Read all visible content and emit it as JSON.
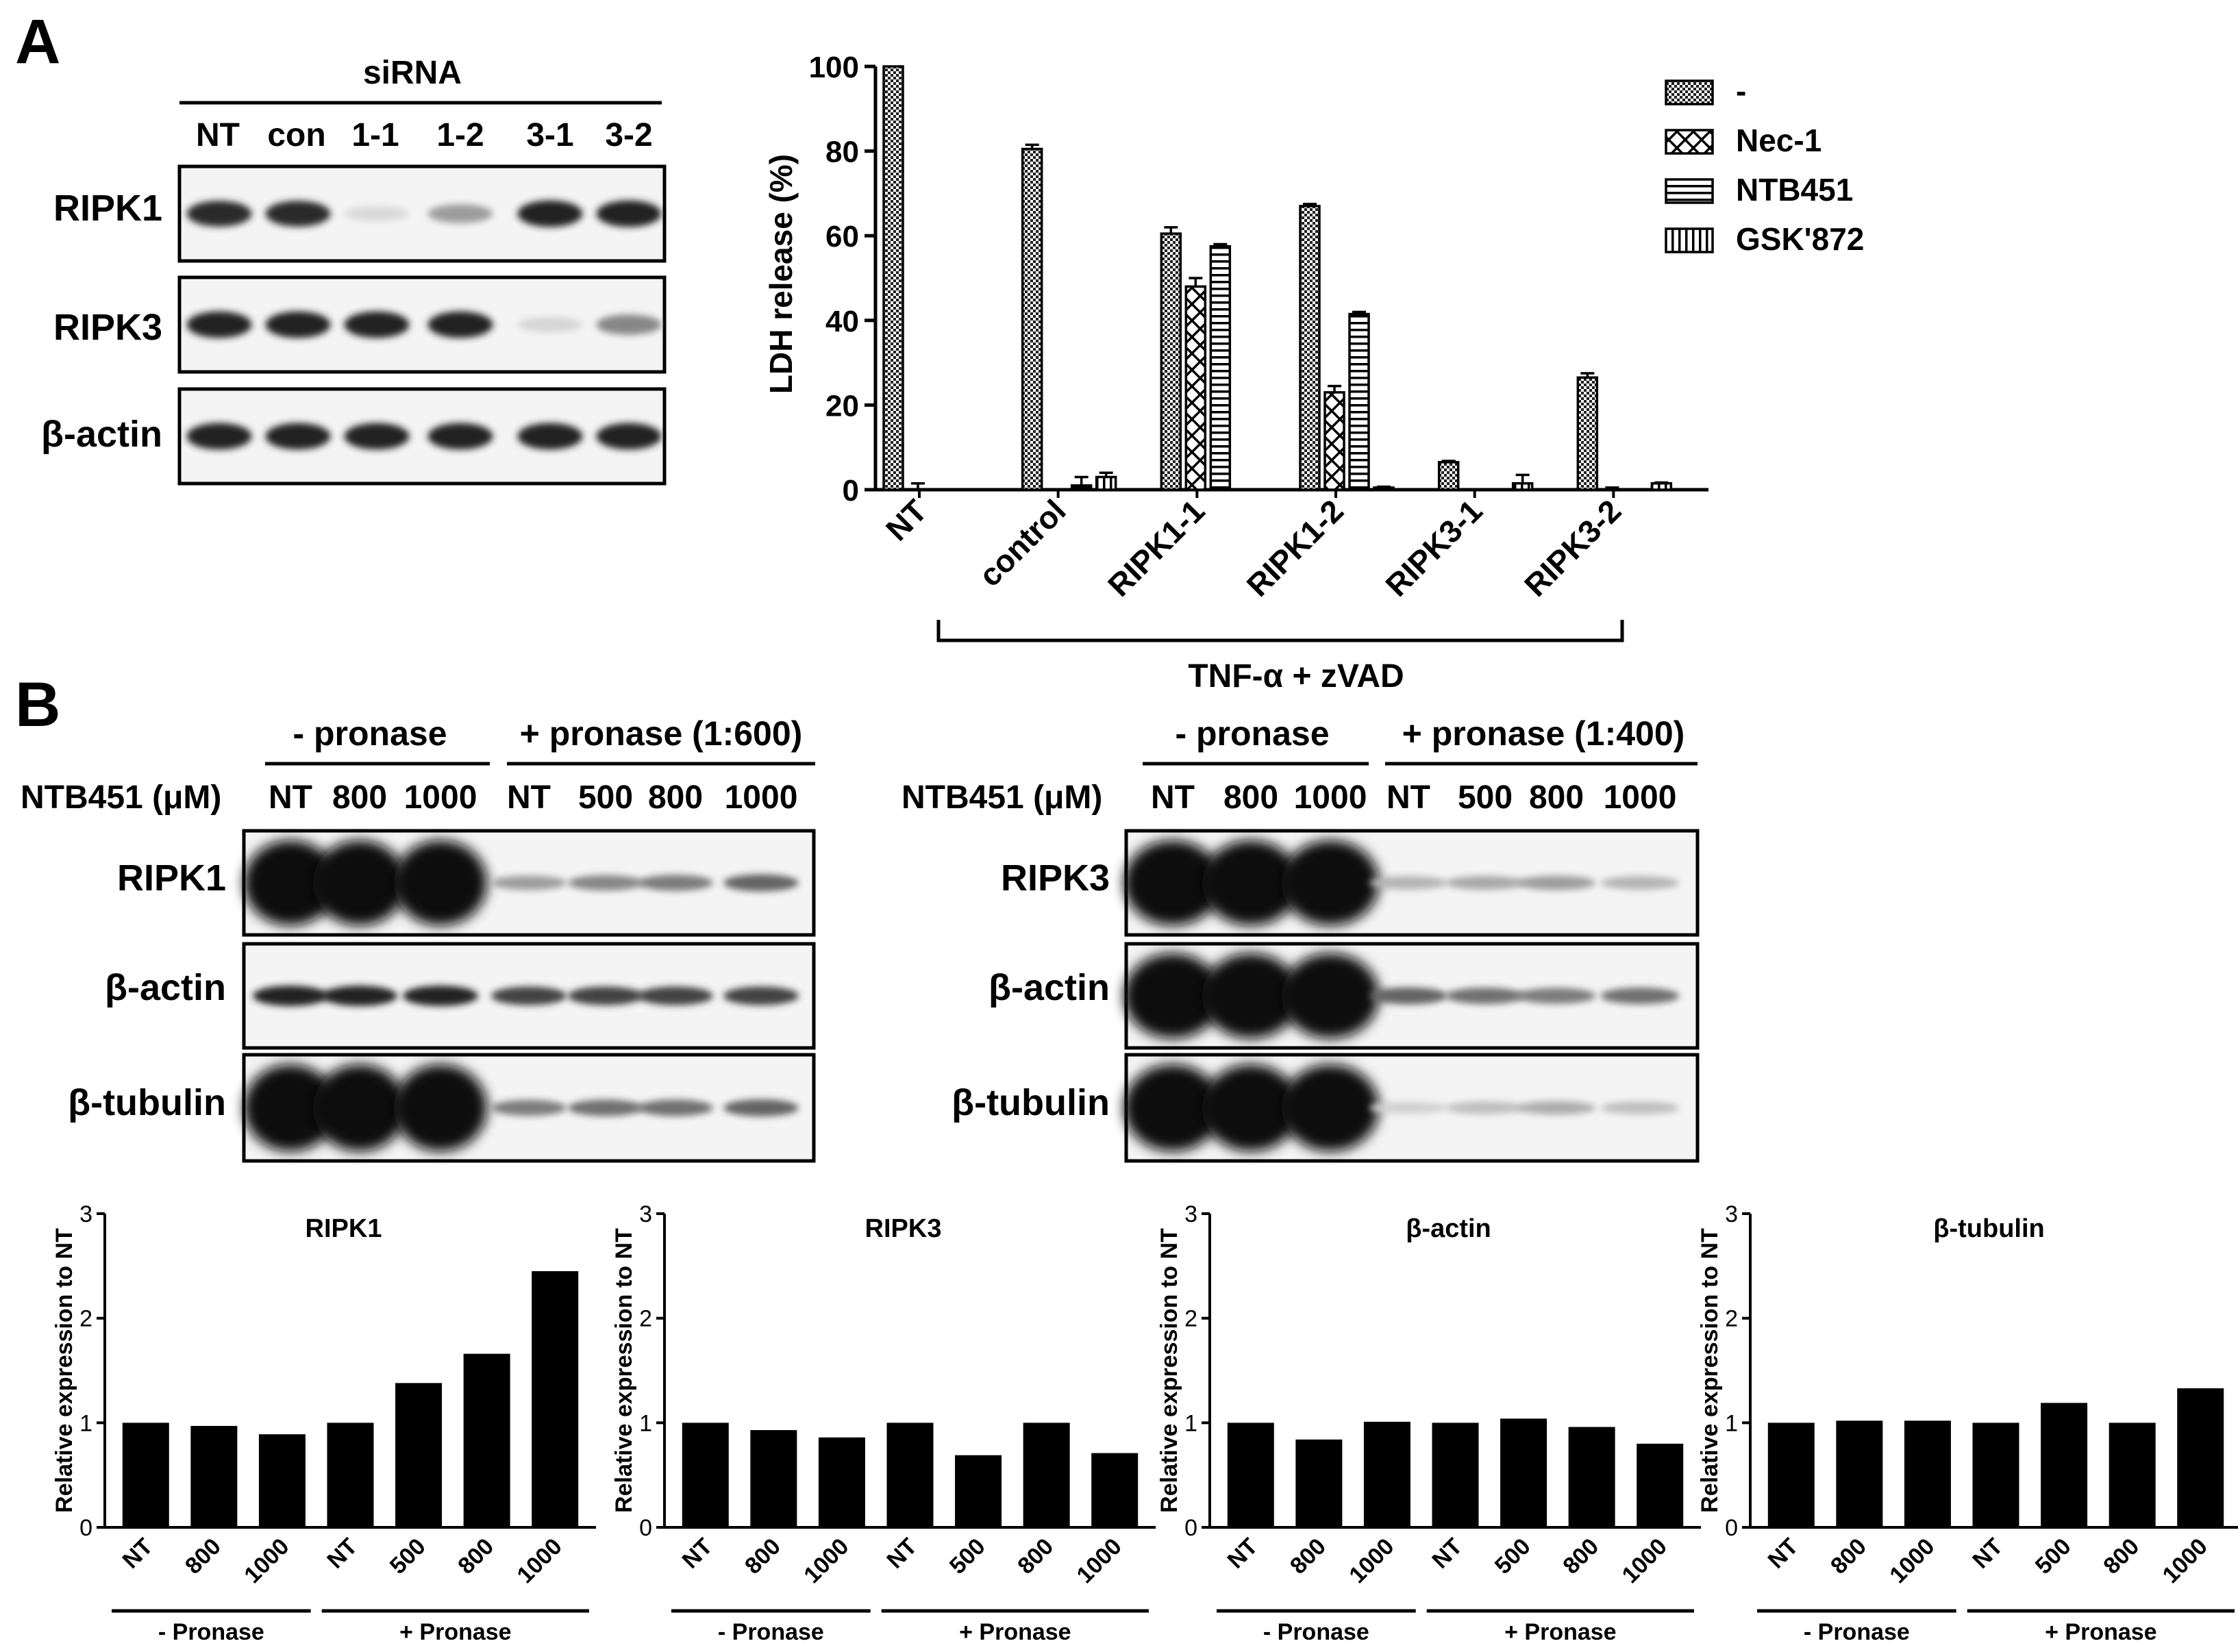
{
  "panel_a": {
    "letter": "A",
    "blot": {
      "header": "siRNA",
      "lanes": [
        "NT",
        "con",
        "1-1",
        "1-2",
        "3-1",
        "3-2"
      ],
      "rows": [
        {
          "label": "RIPK1",
          "intensities": [
            0.85,
            0.85,
            0.08,
            0.35,
            0.9,
            0.9
          ]
        },
        {
          "label": "RIPK3",
          "intensities": [
            0.9,
            0.9,
            0.9,
            0.9,
            0.1,
            0.45
          ]
        },
        {
          "label": "β-actin",
          "intensities": [
            0.9,
            0.9,
            0.9,
            0.9,
            0.9,
            0.9
          ]
        }
      ]
    },
    "bracket_label": "TNF-α + zVAD"
  },
  "panel_b": {
    "letter": "B",
    "left": {
      "groups": [
        "- pronase",
        "+ pronase (1:600)"
      ],
      "row_label": "NTB451 (μM)",
      "lanes": [
        "NT",
        "800",
        "1000",
        "NT",
        "500",
        "800",
        "1000"
      ],
      "rows": [
        {
          "label": "RIPK1",
          "intensities": [
            1,
            1,
            1,
            0.35,
            0.45,
            0.5,
            0.6
          ]
        },
        {
          "label": "β-actin",
          "intensities": [
            0.9,
            0.9,
            0.9,
            0.75,
            0.75,
            0.75,
            0.75
          ]
        },
        {
          "label": "β-tubulin",
          "intensities": [
            1,
            1,
            1,
            0.5,
            0.55,
            0.55,
            0.6
          ]
        }
      ]
    },
    "right": {
      "groups": [
        "- pronase",
        "+ pronase (1:400)"
      ],
      "row_label": "NTB451 (μM)",
      "lanes": [
        "NT",
        "800",
        "1000",
        "NT",
        "500",
        "800",
        "1000"
      ],
      "rows": [
        {
          "label": "RIPK3",
          "intensities": [
            1,
            1,
            1,
            0.25,
            0.3,
            0.35,
            0.25
          ]
        },
        {
          "label": "β-actin",
          "intensities": [
            1,
            1,
            1,
            0.6,
            0.55,
            0.5,
            0.55
          ]
        },
        {
          "label": "β-tubulin",
          "intensities": [
            1,
            1,
            1,
            0.12,
            0.2,
            0.28,
            0.2
          ]
        }
      ]
    }
  },
  "chart_data": [
    {
      "type": "bar",
      "title": "",
      "ylabel": "LDH release (%)",
      "xlabel": "",
      "categories": [
        "NT",
        "control",
        "RIPK1-1",
        "RIPK1-2",
        "RIPK3-1",
        "RIPK3-2"
      ],
      "yticks": [
        "0",
        "20",
        "40",
        "60",
        "80",
        "100"
      ],
      "ylim": [
        0,
        100
      ],
      "legend_position": "top-right",
      "series": [
        {
          "name": "-",
          "values": [
            100,
            80.5,
            60.5,
            67,
            6.5,
            26.5
          ],
          "errors": [
            0,
            1,
            1.5,
            0.5,
            0.3,
            1
          ]
        },
        {
          "name": "Nec-1",
          "values": [
            0,
            0,
            48,
            23,
            0,
            0
          ],
          "errors": [
            1.5,
            0,
            2,
            1.5,
            0,
            0.5
          ]
        },
        {
          "name": "NTB451",
          "values": [
            0,
            1,
            57.5,
            41.5,
            0,
            0
          ],
          "errors": [
            0,
            2,
            0.5,
            0.5,
            0,
            0
          ]
        },
        {
          "name": "GSK'872",
          "values": [
            0,
            3,
            0,
            0.5,
            1.5,
            1.5
          ],
          "errors": [
            0,
            1,
            0,
            0.2,
            2,
            0.2
          ]
        }
      ]
    },
    {
      "type": "bar",
      "title": "RIPK1",
      "ylabel": "Relative expression to NT",
      "categories": [
        "NT",
        "800",
        "1000",
        "NT",
        "500",
        "800",
        "1000"
      ],
      "groups": [
        "- Pronase",
        "+ Pronase"
      ],
      "yticks": [
        "0",
        "1",
        "2",
        "3"
      ],
      "ylim": [
        0,
        3
      ],
      "values": [
        1.0,
        0.97,
        0.89,
        1.0,
        1.38,
        1.66,
        2.45
      ]
    },
    {
      "type": "bar",
      "title": "RIPK3",
      "ylabel": "Relative expression to NT",
      "categories": [
        "NT",
        "800",
        "1000",
        "NT",
        "500",
        "800",
        "1000"
      ],
      "groups": [
        "- Pronase",
        "+ Pronase"
      ],
      "yticks": [
        "0",
        "1",
        "2",
        "3"
      ],
      "ylim": [
        0,
        3
      ],
      "values": [
        1.0,
        0.93,
        0.86,
        1.0,
        0.69,
        1.0,
        0.71
      ]
    },
    {
      "type": "bar",
      "title": "β-actin",
      "ylabel": "Relative expression to NT",
      "categories": [
        "NT",
        "800",
        "1000",
        "NT",
        "500",
        "800",
        "1000"
      ],
      "groups": [
        "- Pronase",
        "+ Pronase"
      ],
      "yticks": [
        "0",
        "1",
        "2",
        "3"
      ],
      "ylim": [
        0,
        3
      ],
      "values": [
        1.0,
        0.84,
        1.01,
        1.0,
        1.04,
        0.96,
        0.8
      ]
    },
    {
      "type": "bar",
      "title": "β-tubulin",
      "ylabel": "Relative expression to NT",
      "categories": [
        "NT",
        "800",
        "1000",
        "NT",
        "500",
        "800",
        "1000"
      ],
      "groups": [
        "- Pronase",
        "+ Pronase"
      ],
      "yticks": [
        "0",
        "1",
        "2",
        "3"
      ],
      "ylim": [
        0,
        3
      ],
      "values": [
        1.0,
        1.02,
        1.02,
        1.0,
        1.19,
        1.0,
        1.33
      ]
    }
  ]
}
